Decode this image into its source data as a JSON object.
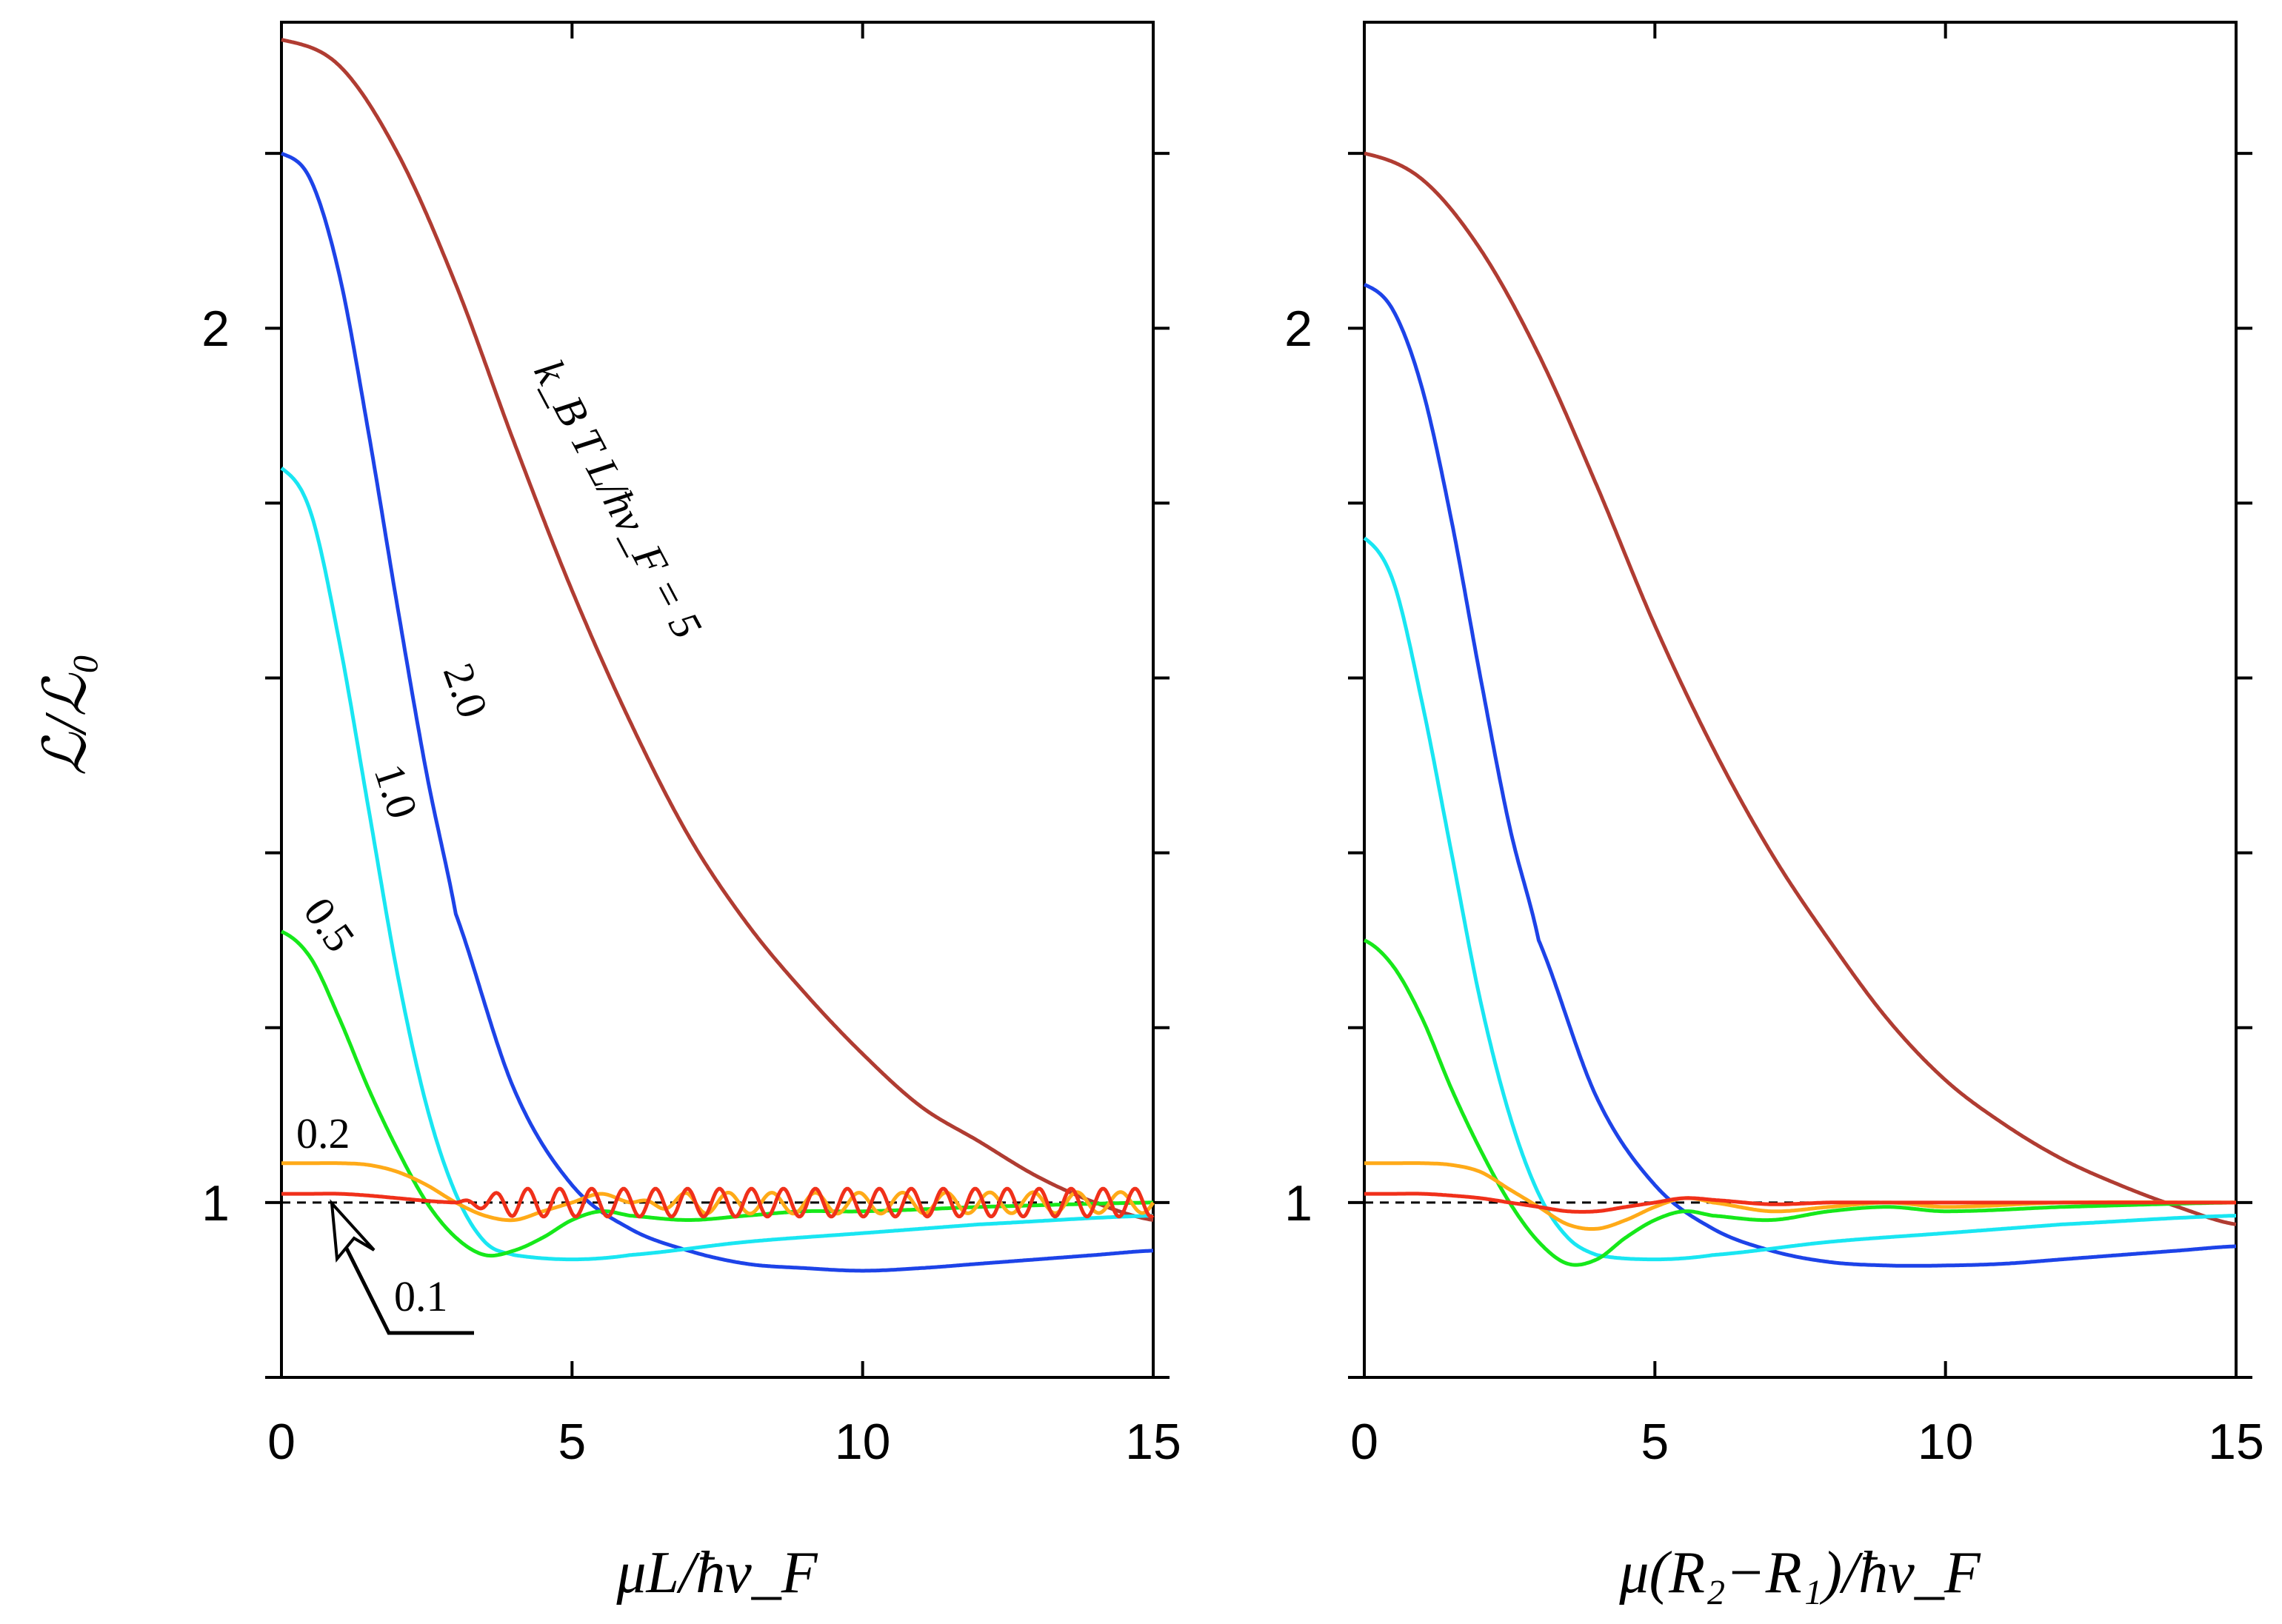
{
  "colors": {
    "kT_5": "#b03c32",
    "kT_2": "#1d43e8",
    "kT_1": "#19e6f2",
    "kT_05": "#16e81a",
    "kT_02": "#ffaa18",
    "kT_01": "#f0301a",
    "reference": "#000000"
  },
  "chart_data": [
    {
      "type": "line",
      "xlabel": "μL/ħv_F",
      "ylabel": "ℒ/ℒ₀",
      "xlim": [
        0,
        15
      ],
      "ylim": [
        0.8,
        2.35
      ],
      "xticks": [
        0,
        5,
        10,
        15
      ],
      "xtick_labels": [
        "0",
        "5",
        "10",
        "15"
      ],
      "yticks": [
        1,
        2
      ],
      "ytick_labels": [
        "1",
        "2"
      ],
      "reference_line": 1,
      "grid": false,
      "annotations": [
        "k_B T L/ħv_F = 5",
        "2.0",
        "1.0",
        "0.5",
        "0.2",
        "0.1"
      ],
      "series": [
        {
          "name": "5",
          "color": "#b03c32",
          "x": [
            0,
            1,
            2,
            3,
            4,
            5,
            6,
            7,
            8,
            9,
            10,
            11,
            12,
            13,
            14,
            15
          ],
          "y": [
            2.33,
            2.3,
            2.2,
            2.05,
            1.87,
            1.7,
            1.55,
            1.42,
            1.32,
            1.24,
            1.17,
            1.11,
            1.07,
            1.03,
            1.0,
            0.98
          ]
        },
        {
          "name": "2.0",
          "color": "#1d43e8",
          "x": [
            0,
            0.5,
            1,
            1.5,
            2,
            2.5,
            3,
            4,
            5,
            6,
            7,
            8,
            9,
            10,
            11,
            12,
            13,
            14,
            15
          ],
          "y": [
            2.2,
            2.17,
            2.06,
            1.88,
            1.68,
            1.49,
            1.33,
            1.13,
            1.02,
            0.97,
            0.945,
            0.93,
            0.925,
            0.922,
            0.925,
            0.93,
            0.935,
            0.94,
            0.945
          ]
        },
        {
          "name": "1.0",
          "color": "#19e6f2",
          "x": [
            0,
            0.5,
            1,
            1.5,
            2,
            2.5,
            3,
            3.5,
            4,
            5,
            6,
            8,
            10,
            12,
            15
          ],
          "y": [
            1.84,
            1.79,
            1.64,
            1.45,
            1.26,
            1.11,
            1.01,
            0.955,
            0.94,
            0.935,
            0.94,
            0.955,
            0.965,
            0.975,
            0.985
          ]
        },
        {
          "name": "0.5",
          "color": "#16e81a",
          "x": [
            0,
            0.5,
            1,
            1.5,
            2,
            2.5,
            3,
            3.5,
            4,
            4.5,
            5,
            5.5,
            6,
            7,
            8,
            9,
            10,
            12,
            15
          ],
          "y": [
            1.31,
            1.28,
            1.21,
            1.13,
            1.06,
            1.0,
            0.96,
            0.94,
            0.945,
            0.96,
            0.98,
            0.99,
            0.985,
            0.98,
            0.985,
            0.99,
            0.99,
            0.995,
            1.0
          ]
        },
        {
          "name": "0.2",
          "color": "#ffaa18",
          "x": [
            0,
            0.5,
            1,
            1.5,
            2,
            2.5,
            3,
            3.5,
            4,
            4.5,
            5,
            5.5,
            6,
            15
          ],
          "y": [
            1.045,
            1.045,
            1.045,
            1.043,
            1.035,
            1.02,
            1.0,
            0.985,
            0.98,
            0.99,
            1.0,
            1.01,
            1.0,
            1.0
          ],
          "oscillation": {
            "from": 6,
            "amplitude": 0.012,
            "period": 0.75
          }
        },
        {
          "name": "0.1",
          "color": "#f0301a",
          "x": [
            0,
            0.5,
            1,
            1.5,
            2,
            2.5,
            3,
            15
          ],
          "y": [
            1.01,
            1.01,
            1.01,
            1.008,
            1.005,
            1.002,
            1.0,
            1.0
          ],
          "oscillation": {
            "from": 3,
            "amplitude": 0.016,
            "period": 0.55
          }
        }
      ]
    },
    {
      "type": "line",
      "xlabel": "μ(R₂−R₁)/ħv_F",
      "ylabel": "",
      "xlim": [
        0,
        15
      ],
      "ylim": [
        0.8,
        2.35
      ],
      "xticks": [
        0,
        5,
        10,
        15
      ],
      "xtick_labels": [
        "0",
        "5",
        "10",
        "15"
      ],
      "yticks": [
        1,
        2
      ],
      "ytick_labels": [
        "1",
        "2"
      ],
      "reference_line": 1,
      "grid": false,
      "series": [
        {
          "color": "#b03c32",
          "x": [
            0,
            1,
            2,
            3,
            4,
            5,
            6,
            7,
            8,
            9,
            10,
            11,
            12,
            13,
            14,
            15
          ],
          "y": [
            2.2,
            2.17,
            2.09,
            1.97,
            1.82,
            1.66,
            1.52,
            1.4,
            1.3,
            1.21,
            1.14,
            1.09,
            1.05,
            1.02,
            0.995,
            0.975
          ]
        },
        {
          "name": "2.0",
          "color": "#1d43e8",
          "x": [
            0,
            0.5,
            1,
            1.5,
            2,
            2.5,
            3,
            4,
            5,
            6,
            7,
            8,
            9,
            10,
            11,
            12,
            13,
            14,
            15
          ],
          "y": [
            2.05,
            2.02,
            1.93,
            1.78,
            1.6,
            1.43,
            1.3,
            1.12,
            1.02,
            0.97,
            0.945,
            0.932,
            0.928,
            0.928,
            0.93,
            0.935,
            0.94,
            0.945,
            0.95
          ]
        },
        {
          "name": "1.0",
          "color": "#19e6f2",
          "x": [
            0,
            0.5,
            1,
            1.5,
            2,
            2.5,
            3,
            3.5,
            4,
            5,
            6,
            8,
            10,
            12,
            15
          ],
          "y": [
            1.76,
            1.71,
            1.57,
            1.4,
            1.23,
            1.1,
            1.01,
            0.96,
            0.94,
            0.935,
            0.94,
            0.955,
            0.965,
            0.975,
            0.985
          ]
        },
        {
          "name": "0.5",
          "color": "#16e81a",
          "x": [
            0,
            0.5,
            1,
            1.5,
            2,
            2.5,
            3,
            3.5,
            4,
            4.5,
            5,
            5.5,
            6,
            7,
            8,
            9,
            10,
            12,
            15
          ],
          "y": [
            1.3,
            1.27,
            1.21,
            1.13,
            1.06,
            1.0,
            0.955,
            0.93,
            0.935,
            0.96,
            0.98,
            0.99,
            0.985,
            0.98,
            0.99,
            0.995,
            0.99,
            0.995,
            1.0
          ]
        },
        {
          "name": "0.2",
          "color": "#ffaa18",
          "x": [
            0,
            0.5,
            1,
            1.5,
            2,
            2.5,
            3,
            3.5,
            4,
            4.5,
            5,
            5.5,
            6,
            7,
            8,
            9,
            10,
            12,
            15
          ],
          "y": [
            1.045,
            1.045,
            1.045,
            1.043,
            1.035,
            1.015,
            0.995,
            0.975,
            0.97,
            0.98,
            0.995,
            1.005,
            1.0,
            0.99,
            0.995,
            1.0,
            0.995,
            1.0,
            1.0
          ]
        },
        {
          "name": "0.1",
          "color": "#f0301a",
          "x": [
            0,
            0.5,
            1,
            1.5,
            2,
            2.5,
            3,
            3.5,
            4,
            4.5,
            5,
            5.5,
            6,
            7,
            8,
            9,
            10,
            15
          ],
          "y": [
            1.01,
            1.01,
            1.01,
            1.008,
            1.005,
            1.0,
            0.995,
            0.99,
            0.99,
            0.995,
            1.0,
            1.005,
            1.003,
            0.998,
            1.0,
            1.0,
            1.0,
            1.0
          ]
        }
      ]
    }
  ]
}
